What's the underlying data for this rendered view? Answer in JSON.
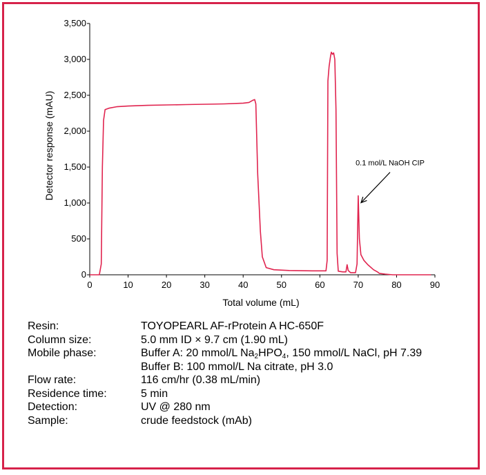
{
  "colors": {
    "frame": "#d6224a",
    "series": "#e0234e",
    "axis": "#000000"
  },
  "chart_data": {
    "type": "line",
    "xlabel": "Total volume (mL)",
    "ylabel": "Detector response (mAU)",
    "xlim": [
      0,
      90
    ],
    "ylim": [
      0,
      3500
    ],
    "x_ticks": [
      "0",
      "10",
      "20",
      "30",
      "40",
      "50",
      "60",
      "70",
      "80",
      "90"
    ],
    "y_ticks": [
      "0",
      "500",
      "1,000",
      "1,500",
      "2,000",
      "2,500",
      "3,000",
      "3,500"
    ],
    "grid": false,
    "annotation": {
      "text": "0.1 mol/L NaOH CIP",
      "points_to": [
        70.2,
        1100
      ]
    },
    "series": [
      {
        "points": [
          [
            0,
            0
          ],
          [
            2.5,
            0
          ],
          [
            3,
            150
          ],
          [
            3.3,
            1500
          ],
          [
            3.6,
            2150
          ],
          [
            4,
            2300
          ],
          [
            5,
            2320
          ],
          [
            7,
            2340
          ],
          [
            10,
            2350
          ],
          [
            15,
            2360
          ],
          [
            20,
            2365
          ],
          [
            25,
            2370
          ],
          [
            30,
            2375
          ],
          [
            35,
            2380
          ],
          [
            40,
            2390
          ],
          [
            41.5,
            2400
          ],
          [
            42.5,
            2430
          ],
          [
            43,
            2440
          ],
          [
            43.3,
            2380
          ],
          [
            43.8,
            1400
          ],
          [
            44.5,
            600
          ],
          [
            45,
            250
          ],
          [
            46,
            100
          ],
          [
            48,
            70
          ],
          [
            52,
            60
          ],
          [
            58,
            55
          ],
          [
            61.6,
            55
          ],
          [
            61.9,
            200
          ],
          [
            62.1,
            2700
          ],
          [
            62.4,
            2900
          ],
          [
            62.8,
            3050
          ],
          [
            63,
            3100
          ],
          [
            63.3,
            3070
          ],
          [
            63.6,
            3090
          ],
          [
            63.9,
            3000
          ],
          [
            64.2,
            2300
          ],
          [
            64.5,
            300
          ],
          [
            64.8,
            50
          ],
          [
            66,
            40
          ],
          [
            66.8,
            40
          ],
          [
            67.1,
            140
          ],
          [
            67.4,
            60
          ],
          [
            68,
            30
          ],
          [
            69.3,
            30
          ],
          [
            69.7,
            150
          ],
          [
            70,
            1100
          ],
          [
            70.3,
            500
          ],
          [
            70.7,
            280
          ],
          [
            71.5,
            200
          ],
          [
            72.5,
            140
          ],
          [
            74,
            70
          ],
          [
            75,
            40
          ],
          [
            75.5,
            20
          ],
          [
            77,
            10
          ],
          [
            79,
            0
          ],
          [
            89,
            0
          ]
        ]
      }
    ]
  },
  "info": [
    {
      "label": "Resin:",
      "value": [
        {
          "t": "TOYOPEARL AF-rProtein A HC-650F"
        }
      ]
    },
    {
      "label": "Column size:",
      "value": [
        {
          "t": "5.0 mm ID × 9.7 cm (1.90 mL)"
        }
      ]
    },
    {
      "label": "Mobile phase:",
      "value": [
        {
          "t": "Buffer A: 20 mmol/L Na"
        },
        {
          "sub": "2"
        },
        {
          "t": "HPO"
        },
        {
          "sub": "4"
        },
        {
          "t": ", 150 mmol/L NaCl, pH 7.39"
        }
      ]
    },
    {
      "label": "",
      "value": [
        {
          "t": "Buffer B: 100 mmol/L Na citrate, pH 3.0"
        }
      ]
    },
    {
      "label": "Flow rate:",
      "value": [
        {
          "t": "116 cm/hr (0.38 mL/min)"
        }
      ]
    },
    {
      "label": "Residence time:",
      "value": [
        {
          "t": "5 min"
        }
      ]
    },
    {
      "label": "Detection:",
      "value": [
        {
          "t": "UV @ 280 nm"
        }
      ]
    },
    {
      "label": "Sample:",
      "value": [
        {
          "t": "crude feedstock (mAb)"
        }
      ]
    }
  ]
}
